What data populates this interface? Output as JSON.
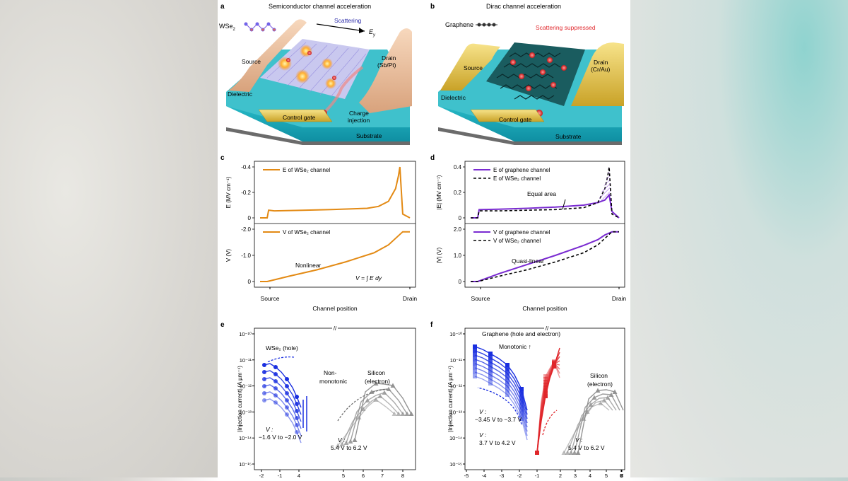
{
  "panels": {
    "a": {
      "letter": "a",
      "title": "Semiconductor channel acceleration",
      "material": "WSe",
      "material_sub": "2",
      "scattering": "Scattering",
      "field": "E",
      "field_sub": "y",
      "source": "Source",
      "drain": "Drain",
      "drain_metal": "(Sb/Pt)",
      "dielectric": "Dielectric",
      "charge": "Charge",
      "injection": "injection",
      "gate": "Control gate",
      "substrate": "Substrate"
    },
    "b": {
      "letter": "b",
      "title": "Dirac channel acceleration",
      "material": "Graphene",
      "scattering": "Scattering suppressed",
      "source": "Source",
      "drain": "Drain",
      "drain_metal": "(Cr/Au)",
      "dielectric": "Dielectric",
      "gate": "Control gate",
      "substrate": "Substrate"
    },
    "c": {
      "letter": "c",
      "xlabel": "Channel position",
      "x_source": "Source",
      "x_drain": "Drain",
      "annotation": "Nonlinear",
      "formula": "V = ∫ E dy"
    },
    "d": {
      "letter": "d",
      "xlabel": "Channel position",
      "x_source": "Source",
      "x_drain": "Drain",
      "annotation_top": "Equal area",
      "annotation_bottom": "Quasi-linear"
    },
    "e": {
      "letter": "e",
      "xlabel": "V  − V  (V)",
      "ylabel": "|Injection current| (A µm⁻¹)",
      "series_wse2": "WSe₂ (hole)",
      "series_si": "Silicon",
      "series_si2": "(electron)",
      "nonmono1": "Non-",
      "nonmono2": "monotonic",
      "vds_wse2_label": "V :",
      "vds_wse2": "−1.6 V to −2.0 V",
      "vds_si_label": "V :",
      "vds_si": "5.4 V to 6.2 V"
    },
    "f": {
      "letter": "f",
      "xlabel": "V  − V  or V  − V     (V)",
      "ylabel": "|Injection current| (A µm⁻¹)",
      "series_graphene": "Graphene (hole and electron)",
      "monotonic": "Monotonic ↑",
      "vds_hole_label": "V        :",
      "vds_hole": "−3.45 V to −3.7 V",
      "vds_elec_label": "V            :",
      "vds_elec": "3.7 V to 4.2 V",
      "series_si": "Silicon",
      "series_si2": "(electron)",
      "vds_si_label": "V :",
      "vds_si": "5.4 V to 6.2 V"
    }
  },
  "colors": {
    "orange": "#e38a14",
    "purple": "#7a2bd1",
    "blue": "#1a2fe0",
    "red": "#e0262b",
    "grey": "#8e8e8e"
  },
  "chart_data": [
    {
      "panel": "c-top",
      "type": "line",
      "ylabel": "E (MV cm⁻¹)",
      "ylim": [
        0,
        -0.4
      ],
      "yticks": [
        "-0.4",
        "-0.2",
        "0"
      ],
      "series": [
        {
          "name": "E of WSe₂ channel",
          "x": [
            0,
            0.05,
            0.06,
            0.1,
            0.3,
            0.5,
            0.75,
            0.83,
            0.9,
            0.95,
            0.97,
            0.98,
            1.0,
            1.05
          ],
          "values": [
            0,
            0,
            -0.06,
            -0.055,
            -0.06,
            -0.065,
            -0.075,
            -0.09,
            -0.13,
            -0.23,
            -0.33,
            -0.4,
            -0.03,
            0
          ]
        }
      ]
    },
    {
      "panel": "c-bottom",
      "type": "line",
      "ylabel": "V (V)",
      "ylim": [
        0,
        -2.0
      ],
      "yticks": [
        "-2.0",
        "-1.0",
        "0"
      ],
      "series": [
        {
          "name": "V of WSe₂ channel",
          "x": [
            0,
            0.05,
            0.2,
            0.4,
            0.6,
            0.8,
            0.9,
            0.95,
            1.0,
            1.05
          ],
          "values": [
            0,
            0,
            -0.2,
            -0.45,
            -0.75,
            -1.1,
            -1.4,
            -1.65,
            -1.9,
            -1.9
          ]
        }
      ]
    },
    {
      "panel": "d-top",
      "type": "line",
      "ylabel": "|E| (MV cm⁻¹)",
      "ylim": [
        0,
        0.4
      ],
      "yticks": [
        "0.4",
        "0.2",
        "0"
      ],
      "series": [
        {
          "name": "E of graphene channel",
          "x": [
            0,
            0.05,
            0.06,
            0.2,
            0.4,
            0.6,
            0.8,
            0.9,
            0.95,
            0.98,
            1.0,
            1.05
          ],
          "values": [
            0,
            0,
            0.065,
            0.068,
            0.075,
            0.085,
            0.1,
            0.12,
            0.14,
            0.18,
            0.05,
            0
          ]
        },
        {
          "name": "E of WSe₂ channel",
          "x": [
            0,
            0.05,
            0.06,
            0.2,
            0.4,
            0.6,
            0.8,
            0.9,
            0.95,
            0.97,
            0.98,
            1.0,
            1.05
          ],
          "values": [
            0,
            0,
            0.055,
            0.055,
            0.06,
            0.065,
            0.08,
            0.12,
            0.23,
            0.33,
            0.4,
            0.03,
            0
          ]
        }
      ]
    },
    {
      "panel": "d-bottom",
      "type": "line",
      "ylabel": "|V| (V)",
      "ylim": [
        0,
        2.0
      ],
      "yticks": [
        "2.0",
        "1.0",
        "0"
      ],
      "series": [
        {
          "name": "V of graphene channel",
          "x": [
            0,
            0.05,
            0.2,
            0.4,
            0.6,
            0.8,
            0.9,
            0.95,
            1.0,
            1.05
          ],
          "values": [
            0,
            0,
            0.3,
            0.65,
            1.0,
            1.38,
            1.6,
            1.78,
            1.9,
            1.9
          ]
        },
        {
          "name": "V of WSe₂ channel",
          "x": [
            0,
            0.05,
            0.2,
            0.4,
            0.6,
            0.8,
            0.9,
            0.95,
            1.0,
            1.05
          ],
          "values": [
            0,
            0,
            0.2,
            0.45,
            0.75,
            1.1,
            1.4,
            1.65,
            1.9,
            1.9
          ]
        }
      ]
    },
    {
      "panel": "e",
      "type": "scatter",
      "yscale": "log",
      "xticks": [
        "-2",
        "-1",
        "4",
        "5",
        "6",
        "7",
        "8"
      ],
      "yticks": [
        "10⁻¹⁵",
        "10⁻¹⁴",
        "10⁻¹³",
        "10⁻¹²",
        "10⁻¹¹",
        "10⁻¹⁰"
      ]
    },
    {
      "panel": "f",
      "type": "scatter",
      "yscale": "log",
      "xticks": [
        "-5",
        "-4",
        "-3",
        "-2",
        "-1",
        "2",
        "3",
        "4",
        "5",
        "6",
        "7",
        "8"
      ],
      "yticks": [
        "10⁻¹⁵",
        "10⁻¹⁴",
        "10⁻¹³",
        "10⁻¹²",
        "10⁻¹¹",
        "10⁻¹⁰"
      ]
    }
  ]
}
